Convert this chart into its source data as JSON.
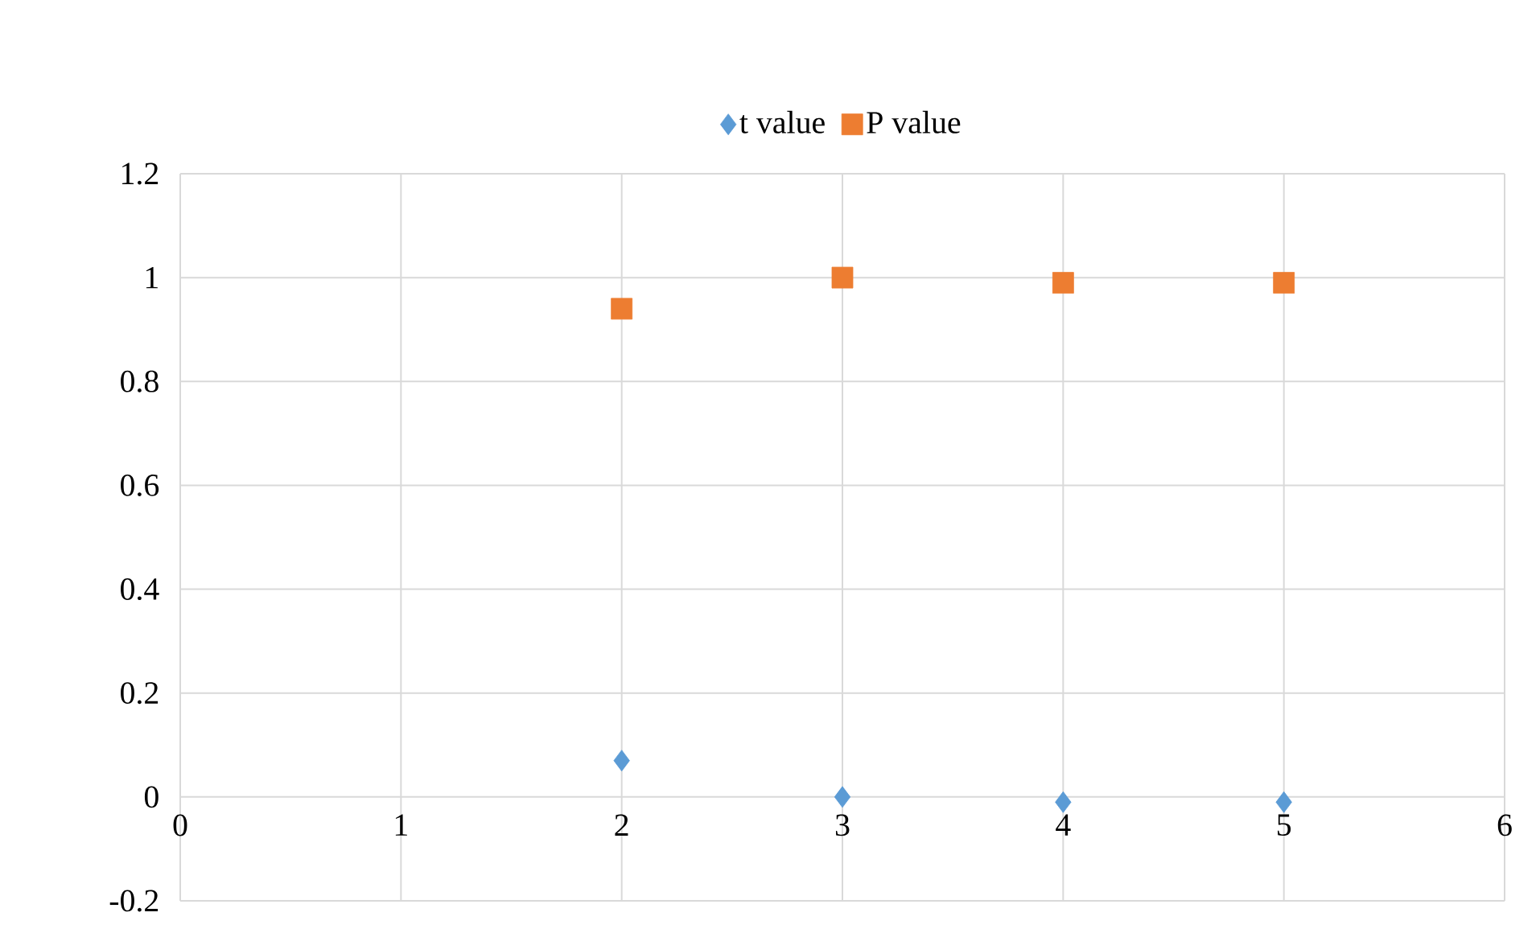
{
  "chart_data": {
    "type": "scatter",
    "x": [
      2,
      3,
      4,
      5
    ],
    "series": [
      {
        "name": "t value",
        "color": "#5b9bd5",
        "marker": "diamond",
        "values": [
          0.07,
          0.0,
          -0.01,
          -0.01
        ]
      },
      {
        "name": "P value",
        "color": "#ed7d31",
        "marker": "square",
        "values": [
          0.94,
          1.0,
          0.99,
          0.99
        ]
      }
    ],
    "xlim": [
      0,
      6
    ],
    "xticks": [
      0,
      1,
      2,
      3,
      4,
      5,
      6
    ],
    "ylim": [
      -0.2,
      1.2
    ],
    "yticks": [
      -0.2,
      0,
      0.2,
      0.4,
      0.6,
      0.8,
      1,
      1.2
    ],
    "grid": true,
    "legend": "top"
  }
}
